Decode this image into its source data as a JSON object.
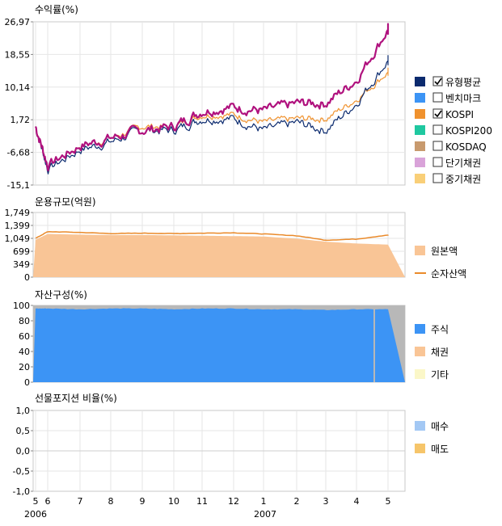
{
  "colors": {
    "fund": "#b0127e",
    "benchmark": "#0b2a6e",
    "kospi": "#f0922e",
    "aum_fill": "#f9c596",
    "aum_line": "#ea8a2a",
    "stock": "#3c94f5",
    "bond": "#f9c596",
    "other": "#fbf7c8",
    "buy": "#a3c8f4",
    "sell": "#f6c56a",
    "grid": "#e6e6e6",
    "divider": "#c8c8c8"
  },
  "legend": {
    "returns": [
      {
        "label": "유형평균",
        "checked": true,
        "color": "#0b2a6e"
      },
      {
        "label": "벤치마크",
        "checked": false,
        "color": "#3c94f5"
      },
      {
        "label": "KOSPI",
        "checked": true,
        "color": "#f0922e"
      },
      {
        "label": "KOSPI200",
        "checked": false,
        "color": "#1fc8a0"
      },
      {
        "label": "KOSDAQ",
        "checked": false,
        "color": "#c89a6e"
      },
      {
        "label": "단기채권",
        "checked": false,
        "color": "#d9a3d9"
      },
      {
        "label": "중기채권",
        "checked": false,
        "color": "#f9cf78"
      }
    ],
    "aum": [
      {
        "label": "원본액",
        "kind": "box",
        "color": "#f9c596"
      },
      {
        "label": "순자산액",
        "kind": "line",
        "color": "#ea8a2a"
      }
    ],
    "assets": [
      {
        "label": "주식",
        "color": "#3c94f5"
      },
      {
        "label": "채권",
        "color": "#f9c596"
      },
      {
        "label": "기타",
        "color": "#fbf7c8"
      }
    ],
    "futures": [
      {
        "label": "매수",
        "color": "#a3c8f4"
      },
      {
        "label": "매도",
        "color": "#f6c56a"
      }
    ]
  },
  "x_axis": {
    "month_labels": [
      "5",
      "6",
      "7",
      "8",
      "9",
      "10",
      "11",
      "12",
      "1",
      "2",
      "3",
      "4",
      "5"
    ],
    "year_labels": [
      "2006",
      "2007"
    ]
  },
  "chart_data": [
    {
      "type": "line",
      "title": "수익률(%)",
      "yticks": [
        "26,97",
        "18,55",
        "10,14",
        "1,72",
        "-6,68",
        "-15,1"
      ],
      "ylim": [
        -15.1,
        26.97
      ],
      "x": [
        "2006-05",
        "2006-06",
        "2006-07",
        "2006-08",
        "2006-09",
        "2006-10",
        "2006-11",
        "2006-12",
        "2007-01",
        "2007-02",
        "2007-03",
        "2007-04",
        "2007-05"
      ],
      "series": [
        {
          "name": "유형평균",
          "values": [
            0,
            -11,
            -6,
            -4,
            -1,
            -1,
            2,
            2,
            -1,
            1,
            -1,
            6,
            17
          ]
        },
        {
          "name": "KOSPI",
          "values": [
            0,
            -10,
            -5,
            -3,
            0,
            0,
            3,
            3,
            1,
            2,
            2,
            7,
            14
          ]
        },
        {
          "values": [
            0,
            -10,
            -5,
            -3,
            -1,
            0,
            4,
            5,
            4,
            6,
            6,
            12,
            25
          ]
        }
      ]
    },
    {
      "type": "area",
      "title": "운용규모(억원)",
      "yticks": [
        "1,749",
        "1,399",
        "1,049",
        "699",
        "349",
        "0"
      ],
      "ylim": [
        0,
        1749
      ],
      "x": [
        "2006-05",
        "2006-06",
        "2006-07",
        "2006-08",
        "2006-09",
        "2006-10",
        "2006-11",
        "2006-12",
        "2007-01",
        "2007-02",
        "2007-03",
        "2007-04",
        "2007-05"
      ],
      "series": [
        {
          "name": "원본액",
          "values": [
            1010,
            1170,
            1150,
            1140,
            1140,
            1130,
            1120,
            1110,
            1100,
            1040,
            960,
            910,
            880
          ]
        },
        {
          "name": "순자산액",
          "values": [
            1050,
            1230,
            1210,
            1180,
            1190,
            1180,
            1190,
            1200,
            1170,
            1120,
            1000,
            1030,
            1140
          ]
        }
      ]
    },
    {
      "type": "area",
      "title": "자산구성(%)",
      "yticks": [
        "100",
        "80",
        "60",
        "40",
        "20",
        "0"
      ],
      "ylim": [
        0,
        100
      ],
      "x": [
        "2006-05",
        "2006-06",
        "2006-07",
        "2006-08",
        "2006-09",
        "2006-10",
        "2006-11",
        "2006-12",
        "2007-01",
        "2007-02",
        "2007-03",
        "2007-04",
        "2007-05"
      ],
      "series": [
        {
          "name": "주식",
          "values": [
            96,
            96,
            95,
            96,
            96,
            95,
            96,
            96,
            95,
            95,
            94,
            95,
            95
          ]
        },
        {
          "name": "채권",
          "values": [
            0,
            0,
            0,
            0,
            0,
            0,
            0,
            0,
            0,
            0,
            0,
            0,
            0
          ]
        },
        {
          "name": "기타",
          "values": [
            4,
            4,
            5,
            4,
            4,
            5,
            4,
            4,
            5,
            5,
            6,
            5,
            5
          ]
        }
      ]
    },
    {
      "type": "bar",
      "title": "선물포지션 비율(%)",
      "yticks": [
        "1,0",
        "0,5",
        "0,0",
        "-0,5",
        "-1,0"
      ],
      "ylim": [
        -1.0,
        1.0
      ],
      "x": [
        "2006-05",
        "2006-06",
        "2006-07",
        "2006-08",
        "2006-09",
        "2006-10",
        "2006-11",
        "2006-12",
        "2007-01",
        "2007-02",
        "2007-03",
        "2007-04",
        "2007-05"
      ],
      "series": [
        {
          "name": "매수",
          "values": [
            0,
            0,
            0,
            0,
            0,
            0,
            0,
            0,
            0,
            0,
            0,
            0,
            0
          ]
        },
        {
          "name": "매도",
          "values": [
            0,
            0,
            0,
            0,
            0,
            0,
            0,
            0,
            0,
            0,
            0,
            0,
            0
          ]
        }
      ]
    }
  ]
}
